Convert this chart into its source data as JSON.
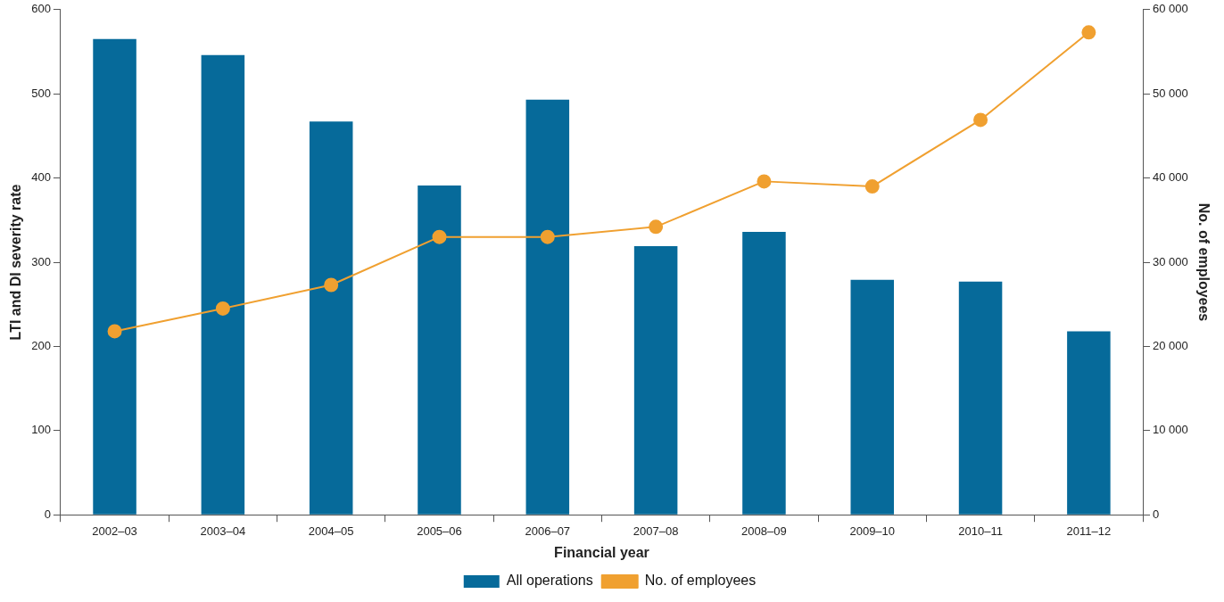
{
  "chart_data": {
    "type": "bar",
    "xlabel": "Financial year",
    "ylabel": "LTI and DI severity rate",
    "y2label": "No. of employees",
    "categories": [
      "2002–03",
      "2003–04",
      "2004–05",
      "2005–06",
      "2006–07",
      "2007–08",
      "2008–09",
      "2009–10",
      "2010–11",
      "2011–12"
    ],
    "series": [
      {
        "name": "All operations",
        "color": "#066a9a",
        "values": [
          565,
          546,
          467,
          391,
          493,
          319,
          336,
          279,
          277,
          218
        ]
      },
      {
        "name": "No. of employees",
        "type": "line",
        "axis": "y2",
        "color": "#f0a030",
        "marker": "circle",
        "values": [
          21800,
          24500,
          27300,
          33000,
          33000,
          34200,
          39600,
          39000,
          46900,
          57300
        ]
      }
    ],
    "ylim": [
      0,
      600
    ],
    "yticks": [
      0,
      100,
      200,
      300,
      400,
      500,
      600
    ],
    "y2lim": [
      0,
      60000
    ],
    "y2ticks": [
      0,
      {
        "value": 10000,
        "label": "10 000"
      },
      {
        "value": 20000,
        "label": "20 000"
      },
      {
        "value": 30000,
        "label": "30 000"
      },
      {
        "value": 40000,
        "label": "40 000"
      },
      {
        "value": 50000,
        "label": "50 000"
      },
      {
        "value": 60000,
        "label": "60 000"
      }
    ],
    "grid": false,
    "legend": "bottom"
  }
}
